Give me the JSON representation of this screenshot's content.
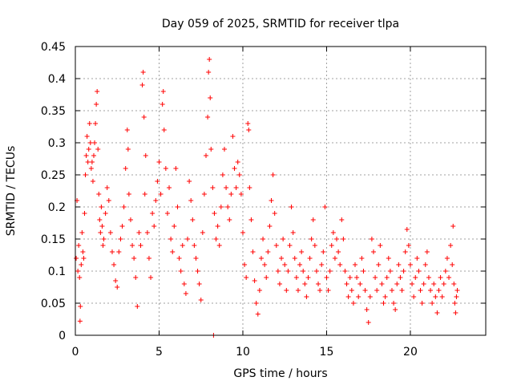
{
  "chart_data": {
    "type": "scatter",
    "title": "Day 059 of 2025, SRMTID for receiver tlpa",
    "xlabel": "GPS time / hours",
    "ylabel": "SRMTID / TECUs",
    "xlim": [
      0,
      24.5
    ],
    "ylim": [
      0,
      0.45
    ],
    "xticks": [
      0,
      5,
      10,
      15,
      20
    ],
    "yticks": [
      0,
      0.05,
      0.1,
      0.15,
      0.2,
      0.25,
      0.3,
      0.35,
      0.4,
      0.45
    ],
    "ytick_labels": [
      "0",
      "0.05",
      "0.1",
      "0.15",
      "0.2",
      "0.25",
      "0.3",
      "0.35",
      "0.4",
      "0.45"
    ],
    "grid": true,
    "marker": "+",
    "color": "#ff0000",
    "series": [
      {
        "points": [
          [
            0.05,
            0.12
          ],
          [
            0.1,
            0.21
          ],
          [
            0.15,
            0.1
          ],
          [
            0.2,
            0.14
          ],
          [
            0.25,
            0.09
          ],
          [
            0.28,
            0.022
          ],
          [
            0.3,
            0.045
          ],
          [
            0.35,
            0.11
          ],
          [
            0.4,
            0.16
          ],
          [
            0.45,
            0.13
          ],
          [
            0.5,
            0.12
          ],
          [
            0.55,
            0.19
          ],
          [
            0.6,
            0.25
          ],
          [
            0.65,
            0.28
          ],
          [
            0.7,
            0.31
          ],
          [
            0.75,
            0.27
          ],
          [
            0.8,
            0.29
          ],
          [
            0.85,
            0.33
          ],
          [
            0.9,
            0.3
          ],
          [
            0.95,
            0.26
          ],
          [
            1.0,
            0.27
          ],
          [
            1.05,
            0.24
          ],
          [
            1.1,
            0.28
          ],
          [
            1.15,
            0.3
          ],
          [
            1.2,
            0.33
          ],
          [
            1.25,
            0.36
          ],
          [
            1.3,
            0.38
          ],
          [
            1.35,
            0.29
          ],
          [
            1.4,
            0.22
          ],
          [
            1.45,
            0.18
          ],
          [
            1.5,
            0.16
          ],
          [
            1.55,
            0.2
          ],
          [
            1.6,
            0.17
          ],
          [
            1.65,
            0.14
          ],
          [
            1.7,
            0.15
          ],
          [
            1.8,
            0.19
          ],
          [
            1.9,
            0.23
          ],
          [
            2.0,
            0.21
          ],
          [
            2.1,
            0.16
          ],
          [
            2.2,
            0.13
          ],
          [
            2.3,
            0.11
          ],
          [
            2.4,
            0.085
          ],
          [
            2.5,
            0.075
          ],
          [
            2.6,
            0.13
          ],
          [
            2.7,
            0.15
          ],
          [
            2.8,
            0.17
          ],
          [
            2.9,
            0.2
          ],
          [
            3.0,
            0.26
          ],
          [
            3.1,
            0.32
          ],
          [
            3.15,
            0.29
          ],
          [
            3.2,
            0.22
          ],
          [
            3.3,
            0.18
          ],
          [
            3.4,
            0.14
          ],
          [
            3.5,
            0.12
          ],
          [
            3.6,
            0.09
          ],
          [
            3.7,
            0.045
          ],
          [
            3.8,
            0.16
          ],
          [
            3.9,
            0.14
          ],
          [
            4.0,
            0.39
          ],
          [
            4.05,
            0.41
          ],
          [
            4.1,
            0.34
          ],
          [
            4.15,
            0.22
          ],
          [
            4.2,
            0.28
          ],
          [
            4.3,
            0.16
          ],
          [
            4.4,
            0.12
          ],
          [
            4.5,
            0.09
          ],
          [
            4.6,
            0.19
          ],
          [
            4.7,
            0.17
          ],
          [
            4.8,
            0.21
          ],
          [
            4.9,
            0.24
          ],
          [
            5.0,
            0.27
          ],
          [
            5.1,
            0.22
          ],
          [
            5.2,
            0.36
          ],
          [
            5.25,
            0.38
          ],
          [
            5.3,
            0.32
          ],
          [
            5.4,
            0.26
          ],
          [
            5.5,
            0.19
          ],
          [
            5.6,
            0.23
          ],
          [
            5.7,
            0.15
          ],
          [
            5.8,
            0.13
          ],
          [
            5.9,
            0.17
          ],
          [
            6.0,
            0.26
          ],
          [
            6.1,
            0.2
          ],
          [
            6.2,
            0.12
          ],
          [
            6.3,
            0.1
          ],
          [
            6.4,
            0.14
          ],
          [
            6.5,
            0.08
          ],
          [
            6.6,
            0.065
          ],
          [
            6.7,
            0.15
          ],
          [
            6.8,
            0.24
          ],
          [
            6.9,
            0.21
          ],
          [
            7.0,
            0.18
          ],
          [
            7.1,
            0.14
          ],
          [
            7.2,
            0.12
          ],
          [
            7.3,
            0.1
          ],
          [
            7.4,
            0.08
          ],
          [
            7.5,
            0.055
          ],
          [
            7.6,
            0.16
          ],
          [
            7.7,
            0.22
          ],
          [
            7.8,
            0.28
          ],
          [
            7.9,
            0.34
          ],
          [
            7.95,
            0.41
          ],
          [
            8.0,
            0.43
          ],
          [
            8.05,
            0.37
          ],
          [
            8.1,
            0.29
          ],
          [
            8.2,
            0.23
          ],
          [
            8.25,
            0.0
          ],
          [
            8.3,
            0.19
          ],
          [
            8.4,
            0.15
          ],
          [
            8.5,
            0.17
          ],
          [
            8.6,
            0.14
          ],
          [
            8.7,
            0.2
          ],
          [
            8.8,
            0.25
          ],
          [
            8.9,
            0.29
          ],
          [
            9.0,
            0.23
          ],
          [
            9.1,
            0.2
          ],
          [
            9.2,
            0.18
          ],
          [
            9.3,
            0.22
          ],
          [
            9.4,
            0.31
          ],
          [
            9.5,
            0.26
          ],
          [
            9.6,
            0.23
          ],
          [
            9.7,
            0.27
          ],
          [
            9.8,
            0.25
          ],
          [
            9.9,
            0.22
          ],
          [
            10.0,
            0.16
          ],
          [
            10.1,
            0.11
          ],
          [
            10.2,
            0.09
          ],
          [
            10.3,
            0.33
          ],
          [
            10.35,
            0.32
          ],
          [
            10.4,
            0.23
          ],
          [
            10.5,
            0.18
          ],
          [
            10.6,
            0.13
          ],
          [
            10.7,
            0.085
          ],
          [
            10.8,
            0.05
          ],
          [
            10.9,
            0.033
          ],
          [
            11.0,
            0.07
          ],
          [
            11.1,
            0.12
          ],
          [
            11.2,
            0.15
          ],
          [
            11.3,
            0.11
          ],
          [
            11.4,
            0.09
          ],
          [
            11.5,
            0.13
          ],
          [
            11.6,
            0.17
          ],
          [
            11.7,
            0.21
          ],
          [
            11.8,
            0.25
          ],
          [
            11.9,
            0.19
          ],
          [
            12.0,
            0.14
          ],
          [
            12.1,
            0.1
          ],
          [
            12.2,
            0.08
          ],
          [
            12.3,
            0.12
          ],
          [
            12.4,
            0.15
          ],
          [
            12.5,
            0.11
          ],
          [
            12.6,
            0.07
          ],
          [
            12.7,
            0.1
          ],
          [
            12.8,
            0.14
          ],
          [
            12.9,
            0.2
          ],
          [
            13.0,
            0.16
          ],
          [
            13.1,
            0.12
          ],
          [
            13.2,
            0.09
          ],
          [
            13.3,
            0.07
          ],
          [
            13.4,
            0.11
          ],
          [
            13.5,
            0.13
          ],
          [
            13.6,
            0.1
          ],
          [
            13.7,
            0.08
          ],
          [
            13.8,
            0.06
          ],
          [
            13.9,
            0.09
          ],
          [
            14.0,
            0.12
          ],
          [
            14.1,
            0.15
          ],
          [
            14.2,
            0.18
          ],
          [
            14.3,
            0.14
          ],
          [
            14.4,
            0.1
          ],
          [
            14.5,
            0.08
          ],
          [
            14.6,
            0.07
          ],
          [
            14.7,
            0.11
          ],
          [
            14.8,
            0.13
          ],
          [
            14.9,
            0.2
          ],
          [
            15.0,
            0.09
          ],
          [
            15.1,
            0.07
          ],
          [
            15.2,
            0.1
          ],
          [
            15.3,
            0.14
          ],
          [
            15.4,
            0.16
          ],
          [
            15.5,
            0.12
          ],
          [
            15.6,
            0.15
          ],
          [
            15.7,
            0.13
          ],
          [
            15.8,
            0.11
          ],
          [
            15.9,
            0.18
          ],
          [
            16.0,
            0.15
          ],
          [
            16.1,
            0.1
          ],
          [
            16.2,
            0.08
          ],
          [
            16.3,
            0.06
          ],
          [
            16.4,
            0.09
          ],
          [
            16.5,
            0.07
          ],
          [
            16.6,
            0.05
          ],
          [
            16.7,
            0.11
          ],
          [
            16.8,
            0.09
          ],
          [
            16.9,
            0.06
          ],
          [
            17.0,
            0.08
          ],
          [
            17.1,
            0.12
          ],
          [
            17.2,
            0.1
          ],
          [
            17.3,
            0.07
          ],
          [
            17.4,
            0.04
          ],
          [
            17.5,
            0.02
          ],
          [
            17.6,
            0.06
          ],
          [
            17.7,
            0.15
          ],
          [
            17.8,
            0.13
          ],
          [
            17.9,
            0.09
          ],
          [
            18.0,
            0.07
          ],
          [
            18.1,
            0.11
          ],
          [
            18.2,
            0.14
          ],
          [
            18.3,
            0.08
          ],
          [
            18.4,
            0.05
          ],
          [
            18.5,
            0.06
          ],
          [
            18.6,
            0.09
          ],
          [
            18.7,
            0.12
          ],
          [
            18.8,
            0.1
          ],
          [
            18.9,
            0.07
          ],
          [
            19.0,
            0.05
          ],
          [
            19.1,
            0.04
          ],
          [
            19.2,
            0.08
          ],
          [
            19.3,
            0.11
          ],
          [
            19.4,
            0.09
          ],
          [
            19.5,
            0.07
          ],
          [
            19.6,
            0.1
          ],
          [
            19.7,
            0.13
          ],
          [
            19.8,
            0.165
          ],
          [
            19.9,
            0.14
          ],
          [
            20.0,
            0.11
          ],
          [
            20.1,
            0.08
          ],
          [
            20.2,
            0.06
          ],
          [
            20.3,
            0.09
          ],
          [
            20.4,
            0.12
          ],
          [
            20.5,
            0.1
          ],
          [
            20.6,
            0.07
          ],
          [
            20.7,
            0.05
          ],
          [
            20.8,
            0.08
          ],
          [
            20.9,
            0.11
          ],
          [
            21.0,
            0.13
          ],
          [
            21.1,
            0.09
          ],
          [
            21.2,
            0.07
          ],
          [
            21.3,
            0.05
          ],
          [
            21.4,
            0.08
          ],
          [
            21.5,
            0.06
          ],
          [
            21.6,
            0.035
          ],
          [
            21.7,
            0.07
          ],
          [
            21.8,
            0.09
          ],
          [
            21.9,
            0.06
          ],
          [
            22.0,
            0.08
          ],
          [
            22.1,
            0.1
          ],
          [
            22.2,
            0.12
          ],
          [
            22.3,
            0.09
          ],
          [
            22.4,
            0.14
          ],
          [
            22.5,
            0.11
          ],
          [
            22.55,
            0.17
          ],
          [
            22.6,
            0.08
          ],
          [
            22.65,
            0.05
          ],
          [
            22.7,
            0.035
          ],
          [
            22.75,
            0.06
          ],
          [
            22.8,
            0.07
          ]
        ]
      }
    ]
  }
}
